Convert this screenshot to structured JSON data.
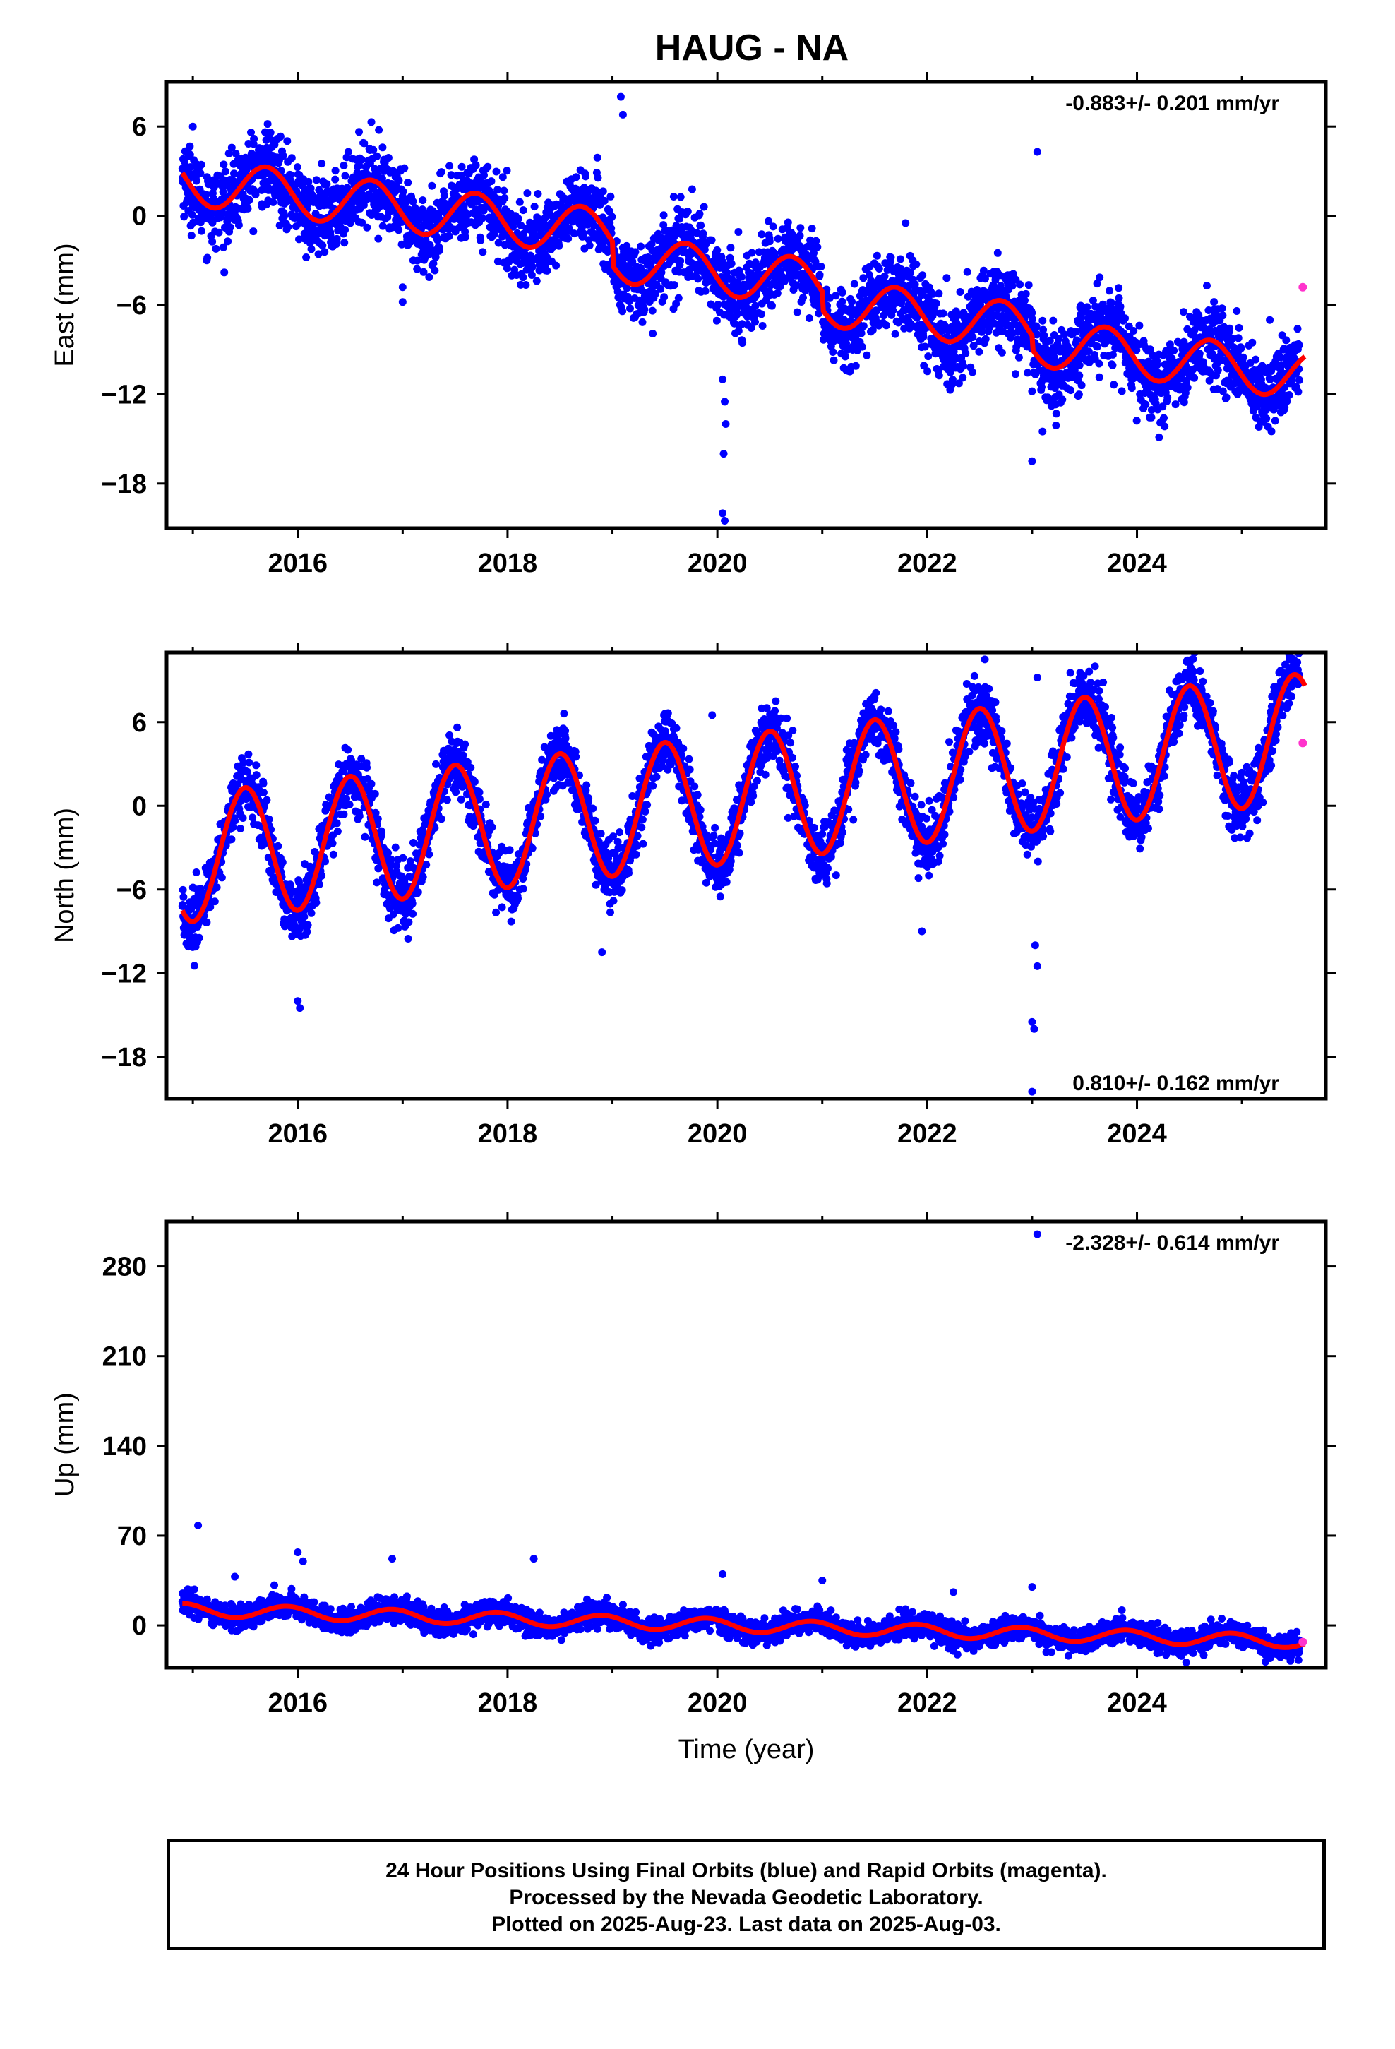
{
  "page": {
    "title": "HAUG - NA",
    "footer": [
      "24 Hour Positions Using Final Orbits (blue) and Rapid Orbits (magenta).",
      "Processed by the Nevada Geodetic Laboratory.",
      "Plotted on 2025-Aug-23. Last data on 2025-Aug-03."
    ]
  },
  "colors": {
    "final_points": "#0000ff",
    "rapid_points": "#ff33cc",
    "model": "#ff0000",
    "axes": "#000000"
  },
  "chart_data": [
    {
      "type": "scatter",
      "ylabel": "East (mm)",
      "xlabel": "",
      "rate_label": "-0.883+/- 0.201 mm/yr",
      "xlim": [
        2014.75,
        2025.8
      ],
      "ylim": [
        -21,
        9
      ],
      "xticks": [
        2016,
        2018,
        2020,
        2022,
        2024
      ],
      "yticks": [
        6,
        0,
        -6,
        -12,
        -18
      ],
      "yticklabels": [
        "6",
        "0",
        "−6",
        "−12",
        "−18"
      ],
      "model": {
        "offset": 2.3,
        "trend": -0.883,
        "t0": 2015.0,
        "amplitude": 1.6,
        "phase_year": 2015.7,
        "steps": [
          [
            2019.0,
            -1.6
          ],
          [
            2021.0,
            -1.2
          ],
          [
            2023.0,
            -0.9
          ]
        ]
      },
      "scatter_sigma": 1.3,
      "series": [
        {
          "name": "Final Orbits (blue)",
          "range": [
            2014.9,
            2025.55
          ]
        },
        {
          "name": "Rapid Orbits (magenta)",
          "points": [
            [
              2025.58,
              -4.8
            ]
          ]
        }
      ],
      "outliers": [
        [
          2015.0,
          6.0
        ],
        [
          2019.08,
          8.0
        ],
        [
          2019.1,
          6.8
        ],
        [
          2020.05,
          -11.0
        ],
        [
          2020.07,
          -12.5
        ],
        [
          2020.08,
          -14.0
        ],
        [
          2020.06,
          -16.0
        ],
        [
          2020.05,
          -20.0
        ],
        [
          2020.07,
          -20.5
        ],
        [
          2023.0,
          -11.8
        ],
        [
          2023.0,
          -16.5
        ],
        [
          2023.05,
          4.3
        ],
        [
          2023.1,
          -14.5
        ],
        [
          2021.98,
          -8.8
        ],
        [
          2017.0,
          -5.8
        ],
        [
          2017.0,
          -4.8
        ]
      ]
    },
    {
      "type": "scatter",
      "ylabel": "North (mm)",
      "xlabel": "",
      "rate_label": "0.810+/- 0.162 mm/yr",
      "xlim": [
        2014.75,
        2025.8
      ],
      "ylim": [
        -21,
        11
      ],
      "xticks": [
        2016,
        2018,
        2020,
        2022,
        2024
      ],
      "yticks": [
        6,
        0,
        -6,
        -12,
        -18
      ],
      "yticklabels": [
        "6",
        "0",
        "−6",
        "−12",
        "−18"
      ],
      "model": {
        "offset": -3.7,
        "trend": 0.81,
        "t0": 2015.0,
        "amplitude": 4.6,
        "phase_year": 2015.5,
        "steps": []
      },
      "scatter_sigma": 1.1,
      "series": [
        {
          "name": "Final Orbits (blue)",
          "range": [
            2014.9,
            2025.55
          ]
        },
        {
          "name": "Rapid Orbits (magenta)",
          "points": [
            [
              2025.58,
              4.5
            ]
          ]
        }
      ],
      "outliers": [
        [
          2016.0,
          -14.0
        ],
        [
          2016.02,
          -14.5
        ],
        [
          2018.9,
          -10.5
        ],
        [
          2021.95,
          -9.0
        ],
        [
          2023.0,
          -15.5
        ],
        [
          2023.02,
          -16.0
        ],
        [
          2023.05,
          -11.5
        ],
        [
          2023.03,
          -10.0
        ],
        [
          2023.0,
          -20.5
        ],
        [
          2023.05,
          9.2
        ],
        [
          2022.55,
          10.5
        ],
        [
          2023.6,
          10.0
        ],
        [
          2019.95,
          6.5
        ]
      ]
    },
    {
      "type": "scatter",
      "ylabel": "Up (mm)",
      "xlabel": "Time (year)",
      "rate_label": "-2.328+/- 0.614 mm/yr",
      "xlim": [
        2014.75,
        2025.8
      ],
      "ylim": [
        -33,
        315
      ],
      "xticks": [
        2016,
        2018,
        2020,
        2022,
        2024
      ],
      "yticks": [
        280,
        210,
        140,
        70,
        0
      ],
      "yticklabels": [
        "280",
        "210",
        "140",
        "70",
        "0"
      ],
      "model": {
        "offset": 12.0,
        "trend": -2.328,
        "t0": 2015.0,
        "amplitude": 5.0,
        "phase_year": 2015.9,
        "steps": []
      },
      "scatter_sigma": 4.5,
      "series": [
        {
          "name": "Final Orbits (blue)",
          "range": [
            2014.9,
            2025.55
          ]
        },
        {
          "name": "Rapid Orbits (magenta)",
          "points": [
            [
              2025.58,
              -13.0
            ]
          ]
        }
      ],
      "outliers": [
        [
          2015.05,
          78.0
        ],
        [
          2015.4,
          38.0
        ],
        [
          2016.0,
          57.0
        ],
        [
          2016.05,
          50.0
        ],
        [
          2016.9,
          52.0
        ],
        [
          2018.25,
          52.0
        ],
        [
          2020.05,
          40.0
        ],
        [
          2021.0,
          35.0
        ],
        [
          2022.25,
          26.0
        ],
        [
          2023.0,
          30.0
        ],
        [
          2023.05,
          305.0
        ]
      ]
    }
  ]
}
